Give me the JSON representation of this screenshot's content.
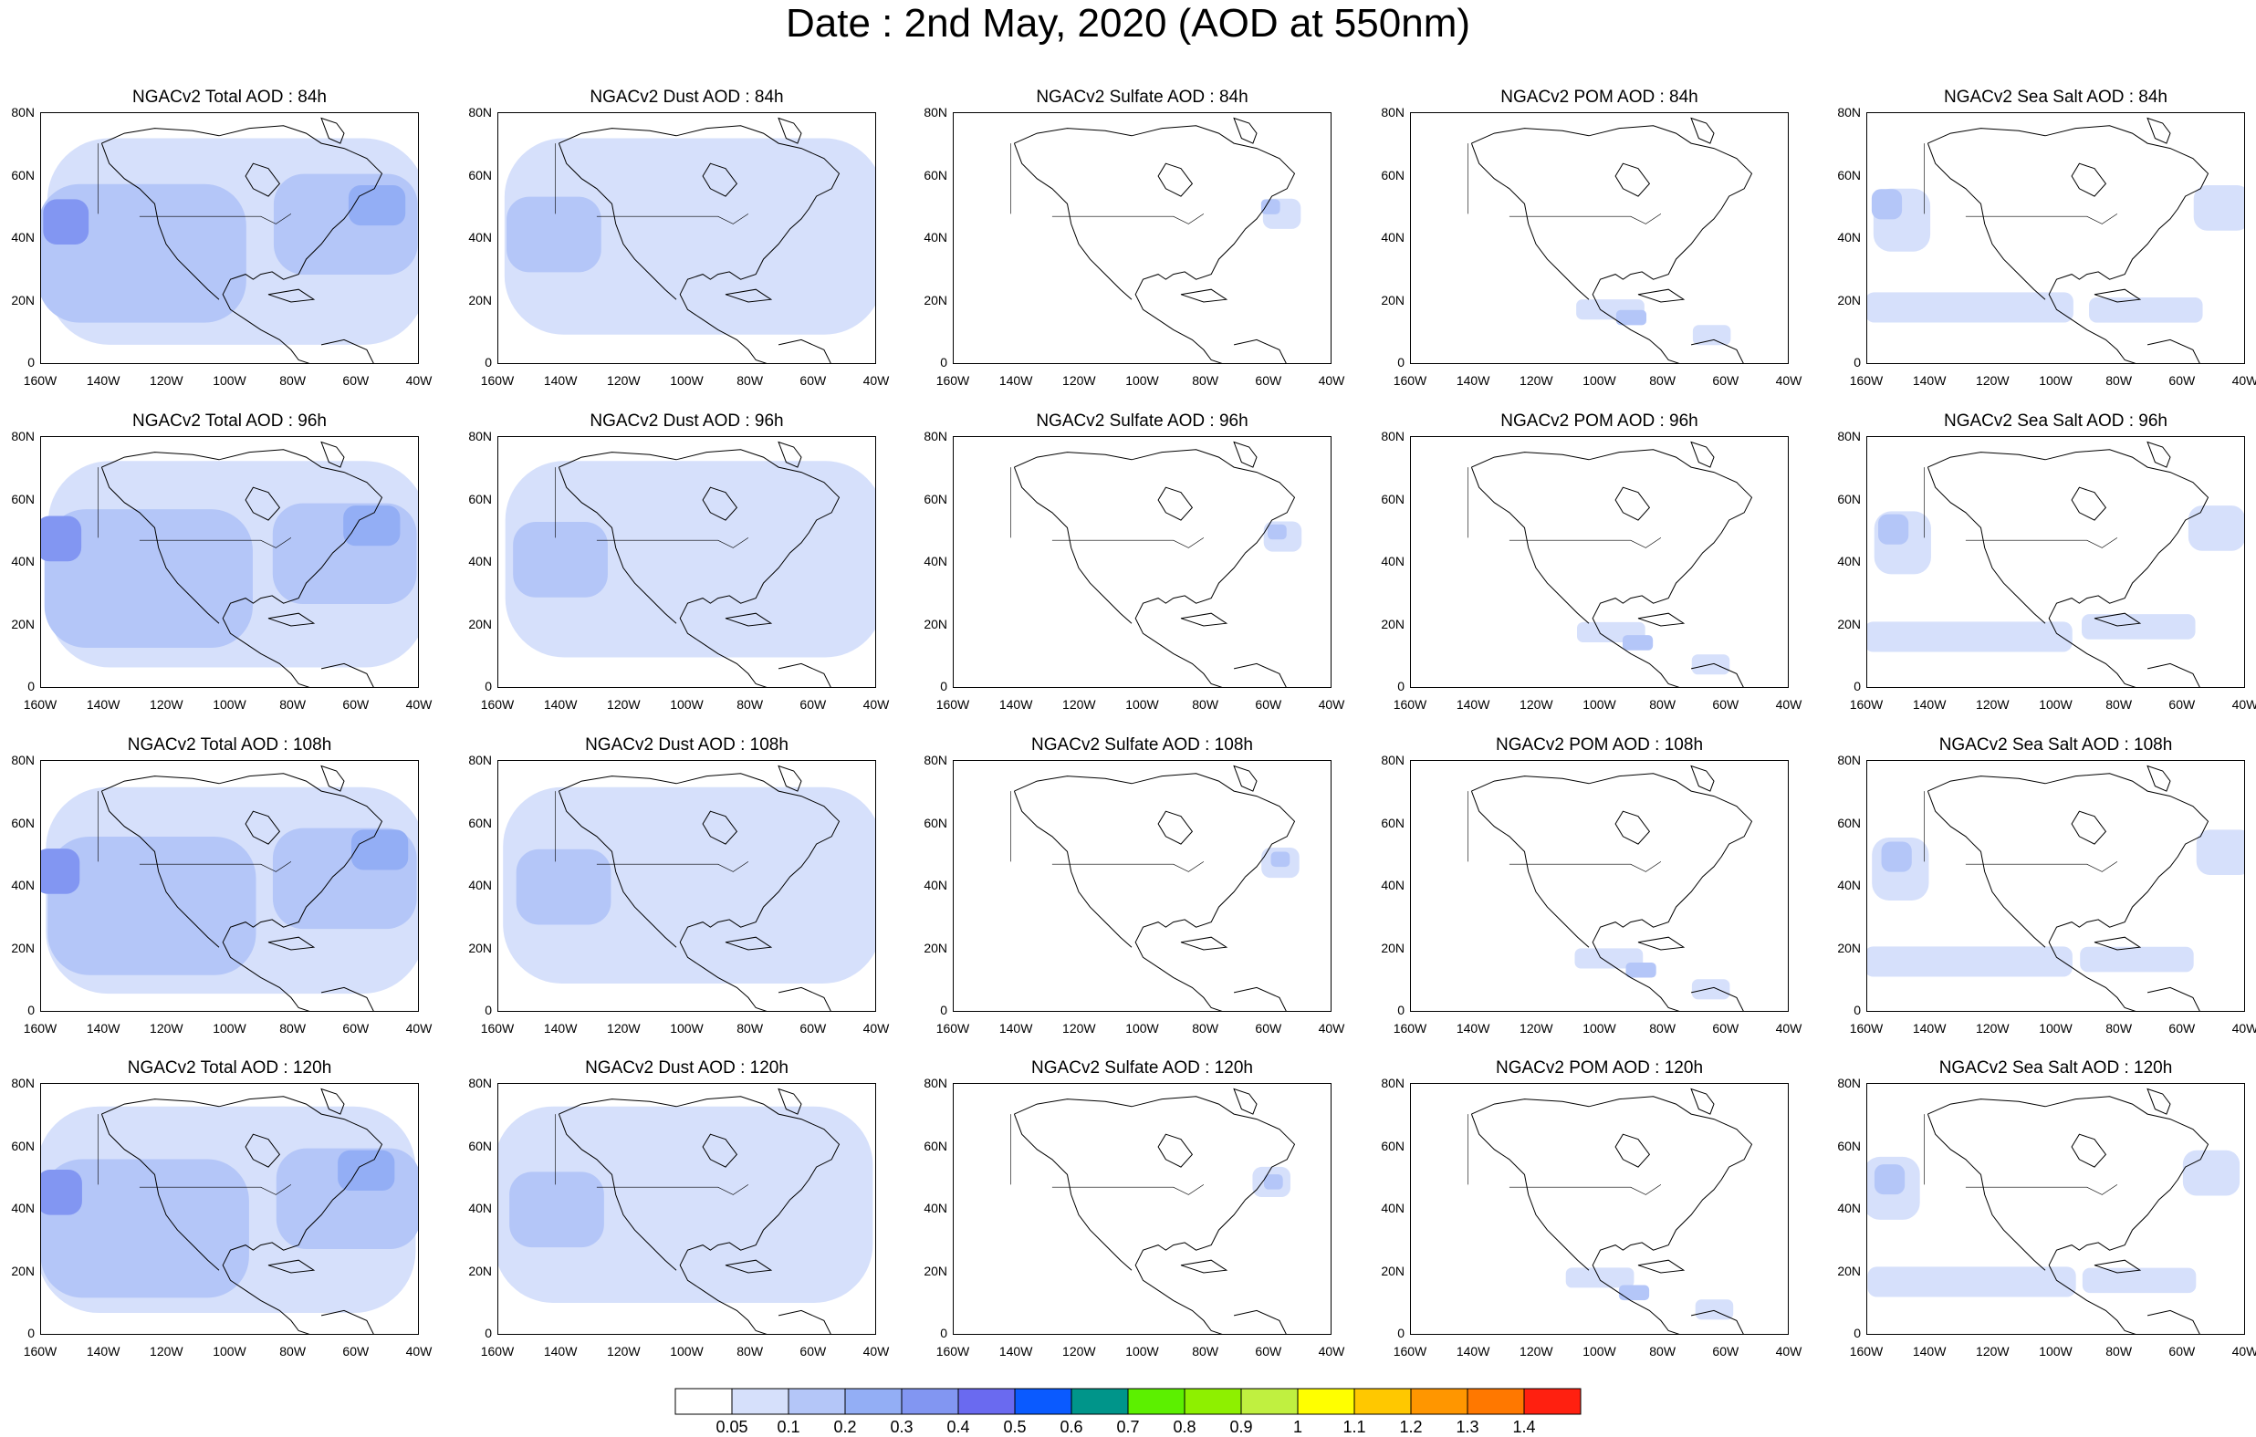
{
  "title": "Date : 2nd May, 2020 (AOD at 550nm)",
  "lat_ticks": [
    "80N",
    "60N",
    "40N",
    "20N",
    "0"
  ],
  "lon_ticks": [
    "160W",
    "140W",
    "120W",
    "100W",
    "80W",
    "60W",
    "40W"
  ],
  "panels": [
    [
      {
        "title": "NGACv2 Total AOD : 84h",
        "species": "total"
      },
      {
        "title": "NGACv2 Dust AOD : 84h",
        "species": "dust"
      },
      {
        "title": "NGACv2 Sulfate AOD : 84h",
        "species": "sulfate"
      },
      {
        "title": "NGACv2 POM AOD : 84h",
        "species": "pom"
      },
      {
        "title": "NGACv2 Sea Salt AOD : 84h",
        "species": "seasalt"
      }
    ],
    [
      {
        "title": "NGACv2 Total AOD : 96h",
        "species": "total"
      },
      {
        "title": "NGACv2 Dust AOD : 96h",
        "species": "dust"
      },
      {
        "title": "NGACv2 Sulfate AOD : 96h",
        "species": "sulfate"
      },
      {
        "title": "NGACv2 POM AOD : 96h",
        "species": "pom"
      },
      {
        "title": "NGACv2 Sea Salt AOD : 96h",
        "species": "seasalt"
      }
    ],
    [
      {
        "title": "NGACv2 Total AOD : 108h",
        "species": "total"
      },
      {
        "title": "NGACv2 Dust AOD : 108h",
        "species": "dust"
      },
      {
        "title": "NGACv2 Sulfate AOD : 108h",
        "species": "sulfate"
      },
      {
        "title": "NGACv2 POM AOD : 108h",
        "species": "pom"
      },
      {
        "title": "NGACv2 Sea Salt AOD : 108h",
        "species": "seasalt"
      }
    ],
    [
      {
        "title": "NGACv2 Total AOD : 120h",
        "species": "total"
      },
      {
        "title": "NGACv2 Dust AOD : 120h",
        "species": "dust"
      },
      {
        "title": "NGACv2 Sulfate AOD : 120h",
        "species": "sulfate"
      },
      {
        "title": "NGACv2 POM AOD : 120h",
        "species": "pom"
      },
      {
        "title": "NGACv2 Sea Salt  AOD : 120h",
        "species": "seasalt"
      }
    ]
  ],
  "colorbar": {
    "labels": [
      "0.05",
      "0.1",
      "0.2",
      "0.3",
      "0.4",
      "0.5",
      "0.6",
      "0.7",
      "0.8",
      "0.9",
      "1",
      "1.1",
      "1.2",
      "1.3",
      "1.4"
    ],
    "colors": [
      "#ffffff",
      "#d6e0fb",
      "#b4c6f8",
      "#93aef5",
      "#8296f2",
      "#6a6af0",
      "#0a5aff",
      "#00958a",
      "#5cf000",
      "#8ef000",
      "#c0f040",
      "#ffff00",
      "#ffc800",
      "#ff9600",
      "#ff7800",
      "#ff2010"
    ]
  }
}
